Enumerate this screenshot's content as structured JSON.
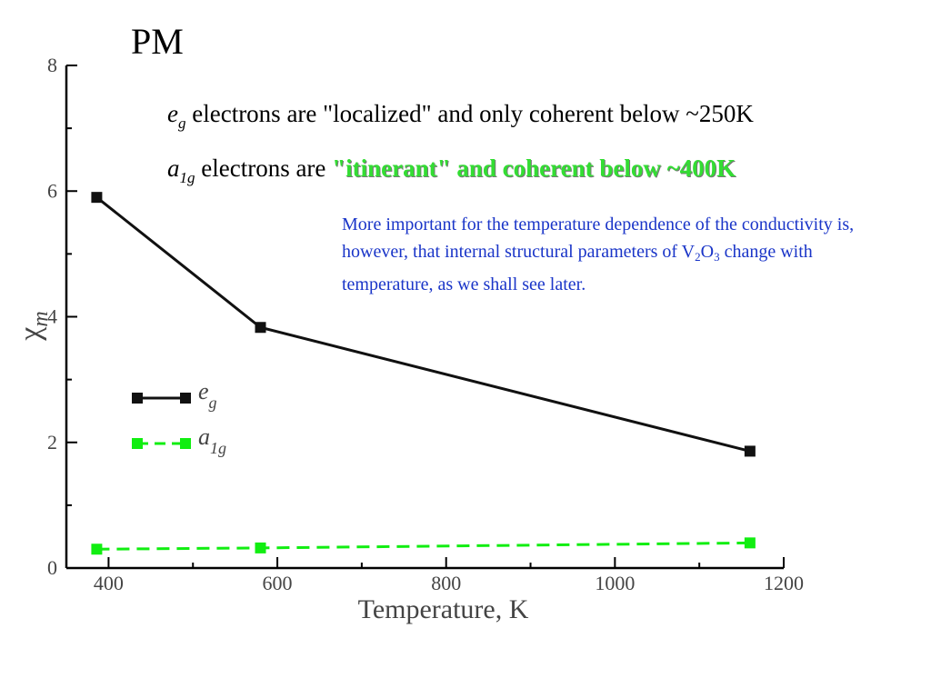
{
  "slide": {
    "title": "PM",
    "eg_statement": {
      "symbol": "e",
      "symbol_sub": "g",
      "prefix": "electrons are",
      "rest": "\"localized\" and only coherent below ~250K"
    },
    "a1g_statement": {
      "symbol": "a",
      "symbol_sub": "1g",
      "prefix": "electrons are",
      "highlight": "\"itinerant\" and coherent below ~400K"
    },
    "note": {
      "part1": "More important for the temperature dependence of the conductivity is, however, that internal structural parameters of V",
      "sub1": "2",
      "part2": "O",
      "sub2": "3",
      "part3": " change with temperature, as we shall see later."
    },
    "colors": {
      "note_text": "#1a35c8",
      "highlight": "#33dd33",
      "eg_series": "#111111",
      "a1g_series": "#11ee11"
    }
  },
  "chart_data": {
    "type": "line",
    "xlabel": "Temperature, K",
    "ylabel": "χ",
    "ylabel_sub": "m",
    "xlim": [
      350,
      1200
    ],
    "ylim": [
      0,
      8
    ],
    "x_ticks": [
      400,
      600,
      800,
      1000,
      1200
    ],
    "y_ticks": [
      0,
      2,
      4,
      6,
      8
    ],
    "legend_position": "middle-left",
    "series": [
      {
        "name": "e",
        "name_sub": "g",
        "style": "solid",
        "marker": "square",
        "color": "#111111",
        "x": [
          386,
          580,
          1160
        ],
        "y": [
          5.9,
          3.83,
          1.86
        ]
      },
      {
        "name": "a",
        "name_sub": "1g",
        "style": "dashed",
        "marker": "square",
        "color": "#11ee11",
        "x": [
          386,
          580,
          1160
        ],
        "y": [
          0.3,
          0.32,
          0.4
        ]
      }
    ]
  }
}
